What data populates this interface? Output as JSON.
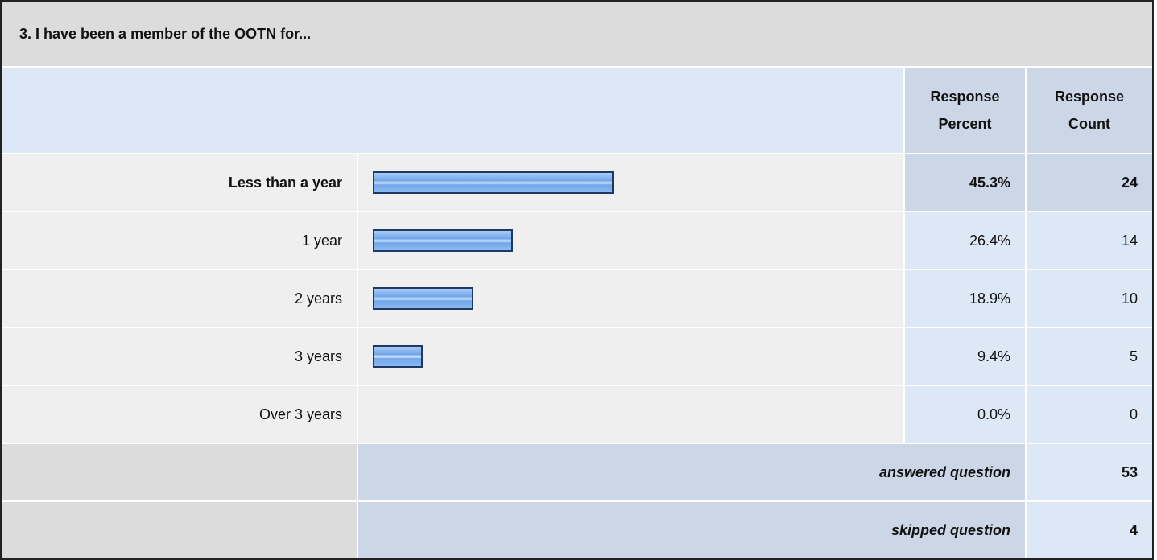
{
  "chart_data": {
    "type": "bar",
    "title": "3. I have been a member of the OOTN for...",
    "columns": [
      "Response Percent",
      "Response Count"
    ],
    "categories": [
      "Less than a year",
      "1 year",
      "2 years",
      "3 years",
      "Over 3 years"
    ],
    "values": [
      45.3,
      26.4,
      18.9,
      9.4,
      0.0
    ],
    "value_labels": [
      "45.3%",
      "26.4%",
      "18.9%",
      "9.4%",
      "0.0%"
    ],
    "counts": [
      24,
      14,
      10,
      5,
      0
    ],
    "xlim": [
      0,
      100
    ],
    "color": "#6fa6ea",
    "answered_label": "answered question",
    "answered": 53,
    "skipped_label": "skipped question",
    "skipped": 4
  }
}
